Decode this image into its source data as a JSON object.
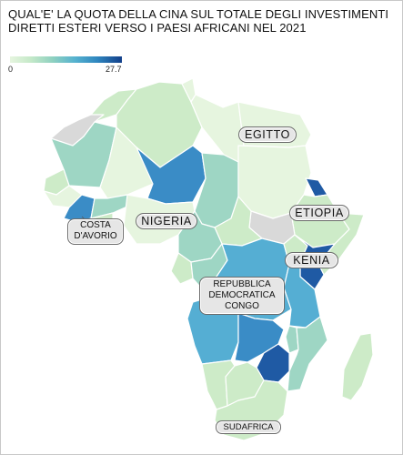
{
  "title": "QUAL'E' LA QUOTA DELLA CINA SUL TOTALE DEGLI INVESTIMENTI DIRETTI ESTERI VERSO I PAESI AFRICANI NEL 2021",
  "legend": {
    "min": "0",
    "max": "27.7"
  },
  "colors": {
    "very_light": "#e6f5df",
    "light": "#cdebc8",
    "teal_light": "#9ed6c4",
    "mid_blue": "#55aed3",
    "blue": "#3a8cc6",
    "dark_blue": "#1f5aa4",
    "no_data": "#d9d9d9"
  },
  "labels": {
    "egypt": "EGITTO",
    "ethiopia": "ETIOPIA",
    "nigeria": "NIGERIA",
    "kenya": "KENIA",
    "ivory_coast": "COSTA D'AVORIO",
    "drc": "REPUBBLICA DEMOCRATICA CONGO",
    "south_africa": "SUDAFRICA"
  }
}
